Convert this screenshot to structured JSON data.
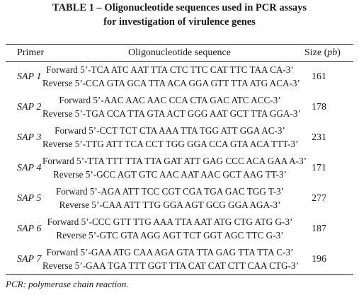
{
  "table": {
    "caption_line1": "TABLE 1 – Oligonucleotide sequences used in PCR assays",
    "caption_line2": "for investigation of virulence genes",
    "headers": {
      "primer": "Primer",
      "sequence": "Oligonucleotide sequence",
      "size_prefix": "Size (",
      "size_unit": "pb",
      "size_suffix": ")"
    },
    "rows": [
      {
        "primer": "SAP 1",
        "forward": "Forward 5’-TCA ATC AAT TTA CTC TTC CAT TTC TAA CA-3’",
        "reverse": "Reverse 5’-CCA GTA GCA TTA ACA GGA GTT TTA ATG ACA-3’",
        "size": "161"
      },
      {
        "primer": "SAP 2",
        "forward": "Forward 5’-AAC AAC AAC CCA CTA GAC ATC ACC-3’",
        "reverse": "Reverse 5’-TGA CCA TTA GTA ACT GGG AAT GCT TTA GGA-3’",
        "size": "178"
      },
      {
        "primer": "SAP 3",
        "forward": "Forward 5’-CCT TCT CTA AAA TTA TGG ATT GGA AC-3’",
        "reverse": "Reverse 5’-TTG ATT TCA CCT TGG GGA CCA GTA ACA TTT-3’",
        "size": "231"
      },
      {
        "primer": "SAP 4",
        "forward": "Forward 5’-TTA TTT TTA TTA GAT ATT GAG CCC ACA GAA A-3’",
        "reverse": "Reverse 5’-GCC AGT GTC AAC AAT AAC GCT AAG TT-3’",
        "size": "171"
      },
      {
        "primer": "SAP 5",
        "forward": "Forward 5’-AGA ATT TCC CGT CGA TGA GAC TGG T-3’",
        "reverse": "Reverse 5’-CAA ATT TTG GGA AGT GCG GGA AGA-3’",
        "size": "277"
      },
      {
        "primer": "SAP 6",
        "forward": "Forward 5’-CCC GTT TTG AAA TTA AAT ATG CTG ATG G-3’",
        "reverse": "Reverse 5’-GTC GTA AGG AGT TCT GGT AGC TTC G-3’",
        "size": "187"
      },
      {
        "primer": "SAP 7",
        "forward": "Forward 5’-GAA ATG CAA AGA GTA TTA GAG TTA TTA C-3’",
        "reverse": "Reverse 5’-GAA TGA TTT GGT TTA CAT CAT CTT CAA CTG-3’",
        "size": "196"
      }
    ],
    "footnote": "PCR: polymerase chain reaction."
  }
}
